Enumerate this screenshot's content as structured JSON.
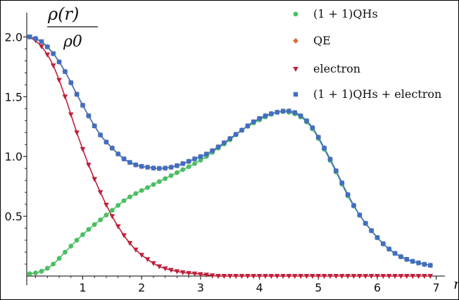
{
  "chart_data": {
    "type": "scatter",
    "title": "",
    "ylabel_num": "ρ(r)",
    "ylabel_den": "ρ0",
    "xlabel": "r",
    "xlim": [
      0.05,
      7.1
    ],
    "ylim": [
      0,
      2.12
    ],
    "x_ticks": [
      1,
      2,
      3,
      4,
      5,
      6,
      7
    ],
    "y_ticks": [
      0.5,
      1.0,
      1.5,
      2.0
    ],
    "x_tick_labels": [
      "1",
      "2",
      "3",
      "4",
      "5",
      "6",
      "7"
    ],
    "y_tick_labels": [
      "0.5",
      "1.0",
      "1.5",
      "2.0"
    ],
    "legend_position": "top-right",
    "series": [
      {
        "name": "(1 + 1)QHs",
        "color": "#4bbf63",
        "marker": "circle",
        "x": [
          0.1,
          0.3,
          0.5,
          0.7,
          0.9,
          1.1,
          1.3,
          1.5,
          1.7,
          1.9,
          2.1,
          2.3,
          2.5,
          2.7,
          2.9,
          3.1,
          3.3,
          3.5,
          3.7,
          3.9,
          4.1,
          4.3,
          4.5,
          4.7,
          4.9,
          5.1,
          5.3,
          5.5,
          5.7,
          5.9,
          6.1,
          6.3,
          6.5,
          6.7,
          6.9
        ],
        "values": [
          0.02,
          0.04,
          0.1,
          0.2,
          0.3,
          0.39,
          0.47,
          0.55,
          0.63,
          0.69,
          0.74,
          0.79,
          0.84,
          0.89,
          0.94,
          1.0,
          1.07,
          1.14,
          1.22,
          1.28,
          1.33,
          1.37,
          1.37,
          1.33,
          1.23,
          1.06,
          0.87,
          0.67,
          0.51,
          0.38,
          0.27,
          0.19,
          0.14,
          0.11,
          0.09
        ]
      },
      {
        "name": "QE",
        "color": "#d9703a",
        "marker": "diamond",
        "x": [
          0.1,
          0.3,
          0.5,
          0.7,
          0.9,
          1.1,
          1.3,
          1.5,
          1.7,
          1.9,
          2.1,
          2.3,
          2.5,
          2.7,
          2.9,
          3.1,
          3.3,
          3.5,
          3.7,
          3.9,
          4.1,
          4.3,
          4.5,
          4.7,
          4.9,
          5.1,
          5.3,
          5.5,
          5.7,
          5.9,
          6.1,
          6.3,
          6.5,
          6.7,
          6.9
        ],
        "values": [
          2.0,
          1.96,
          1.86,
          1.71,
          1.52,
          1.34,
          1.18,
          1.07,
          0.98,
          0.93,
          0.91,
          0.9,
          0.91,
          0.94,
          0.98,
          1.02,
          1.08,
          1.15,
          1.22,
          1.29,
          1.34,
          1.37,
          1.38,
          1.34,
          1.24,
          1.07,
          0.88,
          0.68,
          0.51,
          0.38,
          0.27,
          0.19,
          0.14,
          0.11,
          0.09
        ]
      },
      {
        "name": "electron",
        "color": "#c0203a",
        "marker": "triangle-down",
        "x": [
          0.1,
          0.3,
          0.5,
          0.7,
          0.9,
          1.1,
          1.3,
          1.5,
          1.7,
          1.9,
          2.1,
          2.3,
          2.5,
          2.7,
          2.9,
          3.1,
          3.3,
          3.5,
          3.7,
          3.9,
          4.1,
          4.3,
          4.5,
          4.7,
          4.9,
          5.1,
          5.3,
          5.5,
          5.7,
          5.9,
          6.1,
          6.3,
          6.5,
          6.7,
          6.9
        ],
        "values": [
          2.0,
          1.92,
          1.76,
          1.5,
          1.2,
          0.93,
          0.7,
          0.5,
          0.34,
          0.22,
          0.14,
          0.08,
          0.05,
          0.03,
          0.02,
          0.01,
          0.0,
          0.0,
          0.0,
          0.0,
          0.0,
          0.0,
          0.0,
          0.0,
          0.0,
          0.0,
          0.0,
          0.0,
          0.0,
          0.0,
          0.0,
          0.0,
          0.0,
          0.0,
          0.0
        ]
      },
      {
        "name": "(1 + 1)QHs + electron",
        "color": "#3f6fc2",
        "marker": "square",
        "x": [
          0.1,
          0.3,
          0.5,
          0.7,
          0.9,
          1.1,
          1.3,
          1.5,
          1.7,
          1.9,
          2.1,
          2.3,
          2.5,
          2.7,
          2.9,
          3.1,
          3.3,
          3.5,
          3.7,
          3.9,
          4.1,
          4.3,
          4.5,
          4.7,
          4.9,
          5.1,
          5.3,
          5.5,
          5.7,
          5.9,
          6.1,
          6.3,
          6.5,
          6.7,
          6.9
        ],
        "values": [
          2.0,
          1.96,
          1.86,
          1.71,
          1.52,
          1.34,
          1.18,
          1.07,
          0.98,
          0.93,
          0.91,
          0.9,
          0.91,
          0.94,
          0.98,
          1.02,
          1.08,
          1.15,
          1.22,
          1.29,
          1.34,
          1.37,
          1.38,
          1.34,
          1.24,
          1.07,
          0.88,
          0.68,
          0.51,
          0.38,
          0.27,
          0.19,
          0.14,
          0.11,
          0.09
        ]
      }
    ]
  }
}
